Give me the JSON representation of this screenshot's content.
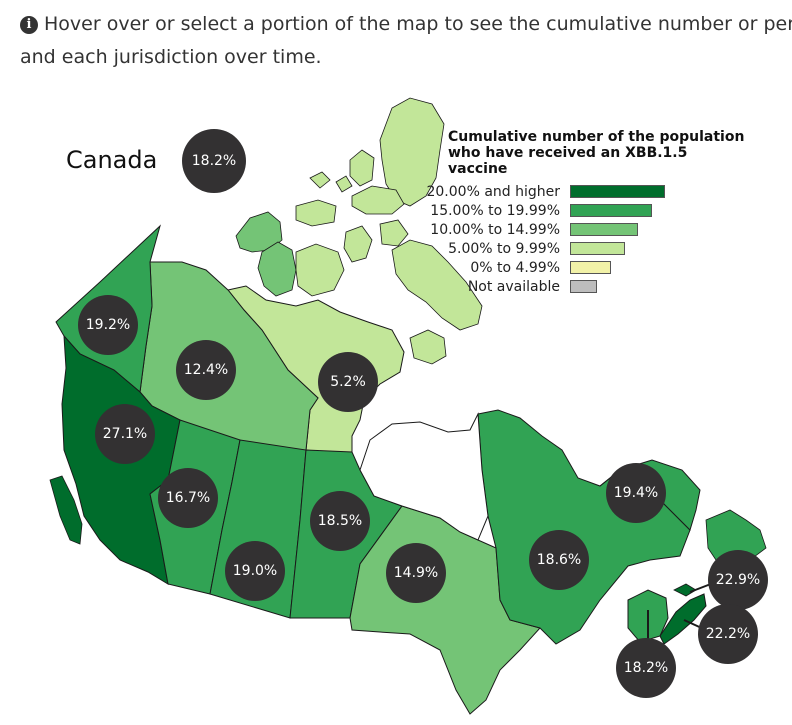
{
  "intro": {
    "line1": "Hover over or select a portion of the map to see the cumulative number or perce",
    "line2": "and each jurisdiction over time."
  },
  "map": {
    "country_label": "Canada",
    "country_value": "18.2%",
    "legend": {
      "title_line1": "Cumulative number of the population",
      "title_line2": "who have received an XBB.1.5 vaccine",
      "items": [
        {
          "label": "20.00% and higher",
          "color": "#006d2c"
        },
        {
          "label": "15.00% to 19.99%",
          "color": "#31a354"
        },
        {
          "label": "10.00% to 14.99%",
          "color": "#74c476"
        },
        {
          "label": "5.00% to 9.99%",
          "color": "#c2e699"
        },
        {
          "label": "0% to 4.99%",
          "color": "#f2f2a8"
        },
        {
          "label": "Not available",
          "color": "#bdbdbd"
        }
      ]
    },
    "regions": {
      "yukon": {
        "value": "19.2%",
        "color": "#31a354"
      },
      "nwt": {
        "value": "12.4%",
        "color": "#74c476"
      },
      "nunavut": {
        "value": "5.2%",
        "color": "#c2e699"
      },
      "bc": {
        "value": "27.1%",
        "color": "#006d2c"
      },
      "alberta": {
        "value": "16.7%",
        "color": "#31a354"
      },
      "saskatchewan": {
        "value": "19.0%",
        "color": "#31a354"
      },
      "manitoba": {
        "value": "18.5%",
        "color": "#31a354"
      },
      "ontario": {
        "value": "14.9%",
        "color": "#74c476"
      },
      "quebec": {
        "value": "18.6%",
        "color": "#31a354"
      },
      "newfoundland": {
        "value": "19.4%",
        "color": "#31a354"
      },
      "new_brunswick": {
        "value": "18.2%",
        "color": "#31a354"
      },
      "nova_scotia": {
        "value": "22.2%",
        "color": "#006d2c"
      },
      "pei": {
        "value": "22.9%",
        "color": "#006d2c"
      }
    }
  }
}
